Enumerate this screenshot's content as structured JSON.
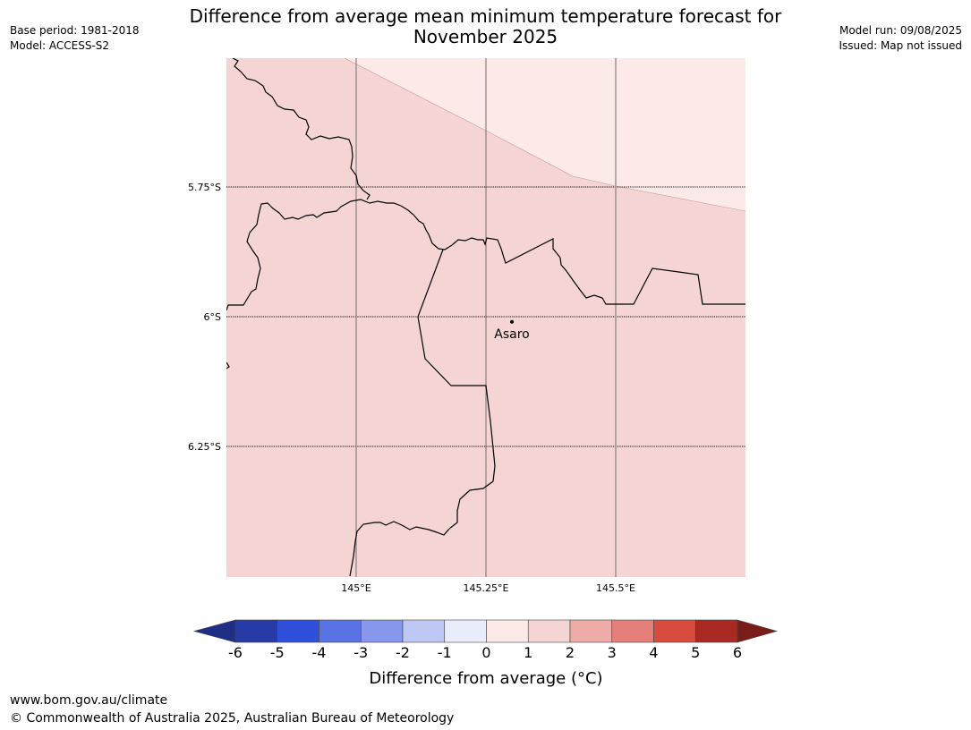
{
  "header": {
    "title_line1": "Difference from average mean minimum temperature forecast for",
    "title_line2": "November 2025",
    "base_period": "Base period: 1981-2018",
    "model": "Model: ACCESS-S2",
    "model_run": "Model run: 09/08/2025",
    "issued": "Issued: Map not issued"
  },
  "map": {
    "lat_ticks": [
      {
        "lat": -5.75,
        "label": "5.75°S"
      },
      {
        "lat": -6.0,
        "label": "6°S"
      },
      {
        "lat": -6.25,
        "label": "6.25°S"
      }
    ],
    "lon_ticks": [
      {
        "lon": 145.0,
        "label": "145°E"
      },
      {
        "lon": 145.25,
        "label": "145.25°E"
      },
      {
        "lon": 145.5,
        "label": "145.5°E"
      }
    ],
    "place": {
      "name": "Asaro",
      "lon": 145.3,
      "lat": -6.01
    },
    "fill_colors": {
      "one_to_two": "#f4d5d3",
      "zero_to_one": "#fbeae8"
    }
  },
  "colorbar": {
    "title": "Difference from average (°C)",
    "labels": [
      "-6",
      "-5",
      "-4",
      "-3",
      "-2",
      "-1",
      "0",
      "1",
      "2",
      "3",
      "4",
      "5",
      "6"
    ],
    "colors": [
      "#273ba6",
      "#3050dc",
      "#5a73e4",
      "#8697ec",
      "#bfc7f4",
      "#e9ecfb",
      "#fbeae8",
      "#f4d5d3",
      "#edaca6",
      "#e57f79",
      "#d94a3e",
      "#a82a22"
    ],
    "extend_low_color": "#1f2f86",
    "extend_high_color": "#7a1c17"
  },
  "footer": {
    "url": "www.bom.gov.au/climate",
    "copyright": "© Commonwealth of Australia 2025, Australian Bureau of Meteorology"
  }
}
